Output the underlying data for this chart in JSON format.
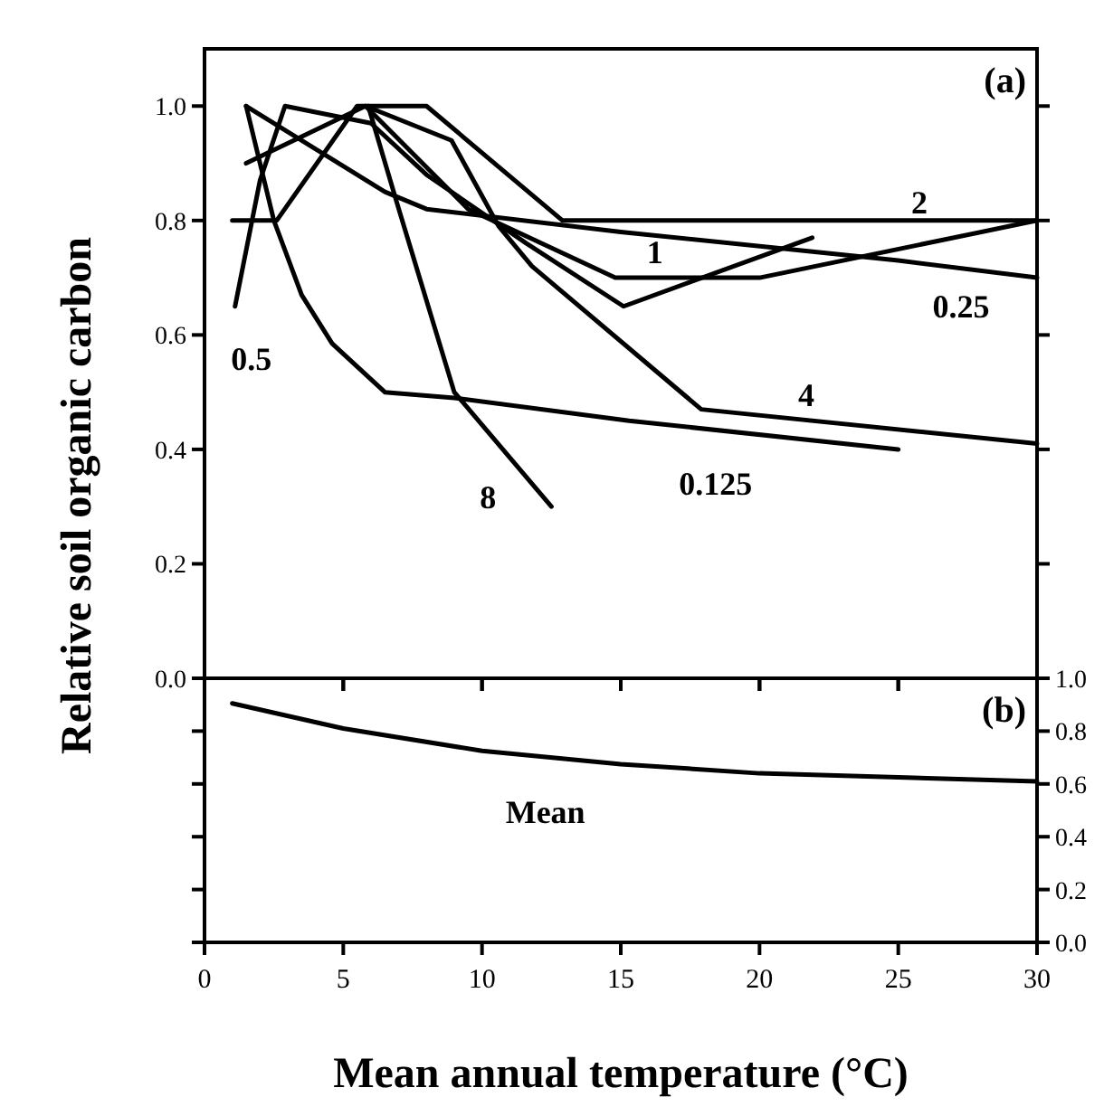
{
  "chart_data": [
    {
      "type": "line",
      "ylabel": "Relative soil organic carbon",
      "xlim": [
        0,
        30
      ],
      "xticks": [
        0,
        5,
        10,
        15,
        20,
        25,
        30
      ],
      "ylim": [
        0,
        1.1
      ],
      "yticks": [
        {
          "value": 0,
          "label": "0.0"
        },
        0.2,
        0.4,
        0.6,
        0.8,
        {
          "value": 1,
          "label": "1.0"
        }
      ],
      "tick_labels": "y",
      "line_style": "solid",
      "marker": "none",
      "grid": false,
      "legend": false,
      "series": [
        {
          "name": "1",
          "color": "#000000",
          "x": [
            1.5,
            5.8,
            9.5,
            14.8,
            20,
            30
          ],
          "values": [
            0.9,
            1.0,
            0.82,
            0.7,
            0.7,
            0.8
          ]
        },
        {
          "name": "2",
          "color": "#000000",
          "x": [
            1,
            2.6,
            5.5,
            8,
            12.9,
            30
          ],
          "values": [
            0.8,
            0.8,
            1.0,
            1.0,
            0.8,
            0.8
          ]
        },
        {
          "name": "0.25",
          "color": "#000000",
          "x": [
            1.5,
            6.5,
            8,
            15,
            25,
            30
          ],
          "values": [
            1.0,
            0.85,
            0.82,
            0.78,
            0.73,
            0.7
          ]
        },
        {
          "name": "4",
          "color": "#000000",
          "x": [
            5.8,
            8.9,
            10.6,
            11.8,
            17.9,
            30
          ],
          "values": [
            1.0,
            0.94,
            0.79,
            0.72,
            0.47,
            0.41
          ]
        },
        {
          "name": "0.125",
          "color": "#000000",
          "x": [
            1.5,
            2.5,
            3.5,
            4.6,
            6.5,
            9,
            15.3,
            25
          ],
          "values": [
            1.0,
            0.8,
            0.67,
            0.585,
            0.5,
            0.49,
            0.45,
            0.4
          ]
        },
        {
          "name": "8",
          "color": "#000000",
          "x": [
            5.9,
            7,
            9,
            12.5
          ],
          "values": [
            1.0,
            0.82,
            0.5,
            0.3
          ]
        },
        {
          "name": "0.5",
          "color": "#000000",
          "x": [
            1.1,
            2,
            2.9,
            6,
            8,
            11.6,
            15.1,
            21.9
          ],
          "values": [
            0.65,
            0.87,
            1.0,
            0.97,
            0.88,
            0.76,
            0.65,
            0.77
          ]
        }
      ],
      "annotations": [
        "(a)"
      ]
    },
    {
      "type": "line",
      "xlabel": "Mean annual temperature (°C)",
      "xlim": [
        0,
        30
      ],
      "xticks": [
        0,
        5,
        10,
        15,
        20,
        25,
        30
      ],
      "y2lim": [
        0,
        1.0
      ],
      "y2ticks": [
        {
          "value": 0,
          "label": "0.0"
        },
        0.2,
        0.4,
        0.6,
        0.8,
        {
          "value": 1,
          "label": "1.0"
        }
      ],
      "tick_labels": [
        "x",
        "y2"
      ],
      "line_style": "solid",
      "marker": "none",
      "grid": false,
      "legend": false,
      "series": [
        {
          "name": "Mean",
          "color": "#000000",
          "axis": "y2",
          "x": [
            1,
            5,
            10,
            15,
            20,
            25,
            30
          ],
          "values": [
            0.905,
            0.81,
            0.725,
            0.675,
            0.64,
            0.625,
            0.61
          ]
        }
      ],
      "annotations": [
        "(b)"
      ]
    }
  ]
}
